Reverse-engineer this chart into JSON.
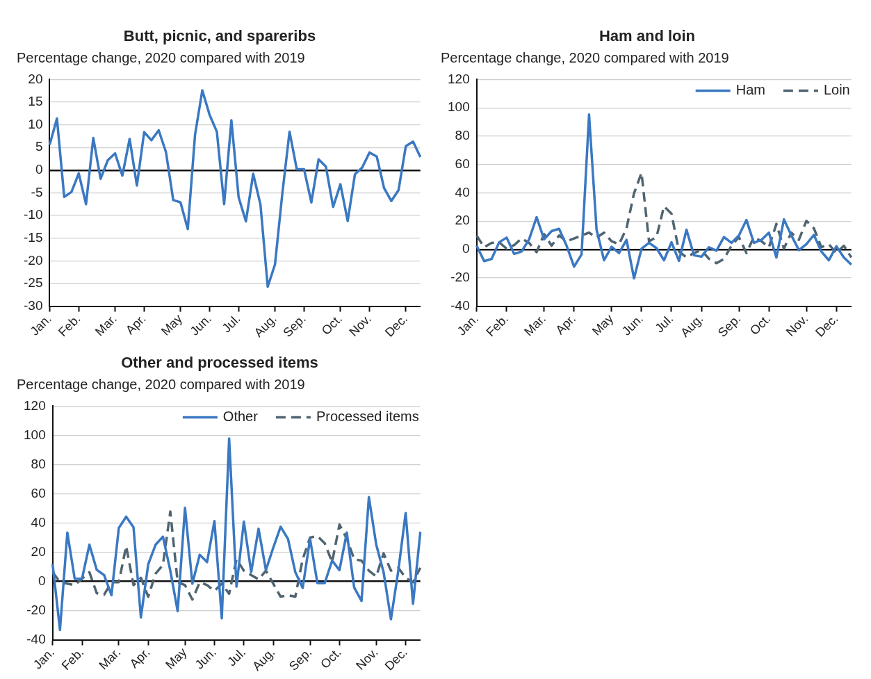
{
  "chart_data": [
    {
      "type": "line",
      "title": "Butt, picnic, and spareribs",
      "subtitle": "Percentage change, 2020 compared with 2019",
      "categories": [
        "Jan.",
        null,
        null,
        null,
        "Feb.",
        null,
        null,
        null,
        null,
        "Mar.",
        null,
        null,
        null,
        "Apr.",
        null,
        null,
        null,
        null,
        "May",
        null,
        null,
        null,
        "Jun.",
        null,
        null,
        null,
        "Jul.",
        null,
        null,
        null,
        null,
        "Aug.",
        null,
        null,
        null,
        "Sep.",
        null,
        null,
        null,
        null,
        "Oct.",
        null,
        null,
        null,
        "Nov.",
        null,
        null,
        null,
        null,
        "Dec.",
        null,
        null
      ],
      "series": [
        {
          "color": "#3a78c2",
          "values": [
            5.6,
            11.4,
            -5.9,
            -4.8,
            -0.7,
            -7.5,
            7.1,
            -1.9,
            2.2,
            3.7,
            -1.2,
            6.9,
            -3.4,
            8.4,
            6.6,
            8.8,
            4.0,
            -6.6,
            -7.1,
            -13.0,
            7.8,
            17.6,
            12.2,
            8.5,
            -7.5,
            11.0,
            -6.0,
            -11.3,
            -0.8,
            -7.6,
            -25.7,
            -20.8,
            -5.3,
            8.5,
            0.2,
            0.2,
            -7.1,
            2.4,
            0.8,
            -8.1,
            -3.1,
            -11.2,
            -0.9,
            0.6,
            3.9,
            3.0,
            -3.9,
            -6.8,
            -4.4,
            5.3,
            6.3,
            2.9
          ]
        }
      ],
      "ylim": [
        -30,
        20
      ],
      "yticks": [
        -30,
        -25,
        -20,
        -15,
        -10,
        -5,
        0,
        5,
        10,
        15,
        20
      ],
      "grid": "y",
      "marker": "none"
    },
    {
      "type": "line",
      "title": "Ham and loin",
      "subtitle": "Percentage change, 2020 compared with 2019",
      "categories": [
        "Jan.",
        null,
        null,
        null,
        "Feb.",
        null,
        null,
        null,
        null,
        "Mar.",
        null,
        null,
        null,
        "Apr.",
        null,
        null,
        null,
        null,
        "May",
        null,
        null,
        null,
        "Jun.",
        null,
        null,
        null,
        "Jul.",
        null,
        null,
        null,
        "Aug.",
        null,
        null,
        null,
        null,
        "Sep.",
        null,
        null,
        null,
        "Oct.",
        null,
        null,
        null,
        null,
        "Nov.",
        null,
        null,
        null,
        "Dec.",
        null,
        null
      ],
      "series": [
        {
          "name": "Ham",
          "color": "#3a78c2",
          "line_style": "solid",
          "values": [
            2.7,
            -8.2,
            -6.6,
            5.1,
            8.4,
            -3.1,
            -1.4,
            7.2,
            22.8,
            7.2,
            13.0,
            14.6,
            2.7,
            -12.1,
            -3.5,
            95.3,
            14.0,
            -7.6,
            1.9,
            -2.5,
            6.8,
            -20.4,
            0.6,
            4.7,
            1.0,
            -7.6,
            5.1,
            -8.0,
            14.0,
            -4.1,
            -5.1,
            1.6,
            -0.8,
            8.8,
            4.7,
            9.9,
            20.8,
            4.7,
            6.8,
            11.9,
            -5.6,
            21.2,
            9.9,
            -0.4,
            3.7,
            10.3,
            -1.4,
            -7.6,
            2.3,
            -5.6,
            -10.7
          ]
        },
        {
          "name": "Loin",
          "color": "#4f6470",
          "line_style": "dashed",
          "values": [
            9.9,
            1.6,
            4.7,
            5.1,
            0.6,
            3.1,
            7.8,
            4.7,
            -1.9,
            10.9,
            2.7,
            9.9,
            5.8,
            7.8,
            9.9,
            11.9,
            8.4,
            11.9,
            5.8,
            3.7,
            15.0,
            39.7,
            54.1,
            5.8,
            8.8,
            30.5,
            25.3,
            -1.4,
            -5.6,
            -2.5,
            -0.4,
            -6.6,
            -9.7,
            -6.6,
            2.7,
            8.8,
            -2.5,
            8.8,
            5.8,
            1.6,
            18.1,
            0.6,
            11.9,
            6.8,
            20.2,
            15.0,
            1.6,
            3.7,
            -2.5,
            2.7,
            -5.6
          ]
        }
      ],
      "ylim": [
        -40,
        120
      ],
      "yticks": [
        -40,
        -20,
        0,
        20,
        40,
        60,
        80,
        100,
        120
      ],
      "grid": "y",
      "legend": "top right",
      "marker": "none"
    },
    {
      "type": "line",
      "title": "Other and processed items",
      "subtitle": "Percentage change, 2020 compared with 2019",
      "categories": [
        "Jan.",
        null,
        null,
        null,
        "Feb.",
        null,
        null,
        null,
        null,
        "Mar.",
        null,
        null,
        null,
        "Apr.",
        null,
        null,
        null,
        null,
        "May",
        null,
        null,
        null,
        "Jun.",
        null,
        null,
        null,
        "Jul.",
        null,
        null,
        null,
        "Aug.",
        null,
        null,
        null,
        null,
        "Sep.",
        null,
        null,
        null,
        "Oct.",
        null,
        null,
        null,
        null,
        "Nov.",
        null,
        null,
        null,
        "Dec.",
        null,
        null
      ],
      "series": [
        {
          "name": "Other",
          "color": "#3a78c2",
          "line_style": "solid",
          "values": [
            11.7,
            -33.2,
            33.4,
            1.8,
            1.8,
            25.1,
            7.9,
            4.3,
            -9.5,
            36.6,
            44.3,
            37.0,
            -24.7,
            11.7,
            25.1,
            30.6,
            7.3,
            -20.4,
            50.4,
            -1.6,
            18.2,
            13.2,
            41.3,
            -25.3,
            97.8,
            -3.6,
            40.9,
            6.3,
            36.0,
            7.7,
            23.1,
            37.4,
            29.1,
            6.3,
            -4.5,
            29.1,
            -1.2,
            -1.2,
            14.2,
            7.7,
            33.4,
            -4.2,
            -13.4,
            57.7,
            25.1,
            6.3,
            -25.9,
            7.3,
            46.8,
            -15.4,
            34.0
          ]
        },
        {
          "name": "Processed items",
          "color": "#4f6470",
          "line_style": "dashed",
          "values": [
            6.3,
            -0.6,
            -1.6,
            -2.6,
            1.8,
            6.3,
            -8.1,
            -9.1,
            -0.6,
            -0.6,
            24.1,
            -2.6,
            2.4,
            -10.5,
            5.3,
            11.3,
            47.8,
            -0.6,
            -2.6,
            -12.5,
            -0.6,
            -2.6,
            -6.5,
            -1.6,
            -8.5,
            15.2,
            7.3,
            4.3,
            1.4,
            7.3,
            -1.6,
            -10.5,
            -9.5,
            -10.5,
            15.2,
            30.0,
            31.0,
            26.1,
            13.2,
            38.9,
            29.1,
            15.2,
            14.2,
            7.3,
            3.4,
            19.2,
            7.3,
            9.3,
            2.4,
            -0.6,
            9.3
          ]
        }
      ],
      "ylim": [
        -40,
        120
      ],
      "yticks": [
        -40,
        -20,
        0,
        20,
        40,
        60,
        80,
        100,
        120
      ],
      "grid": "y",
      "legend": "top right",
      "marker": "none"
    }
  ]
}
